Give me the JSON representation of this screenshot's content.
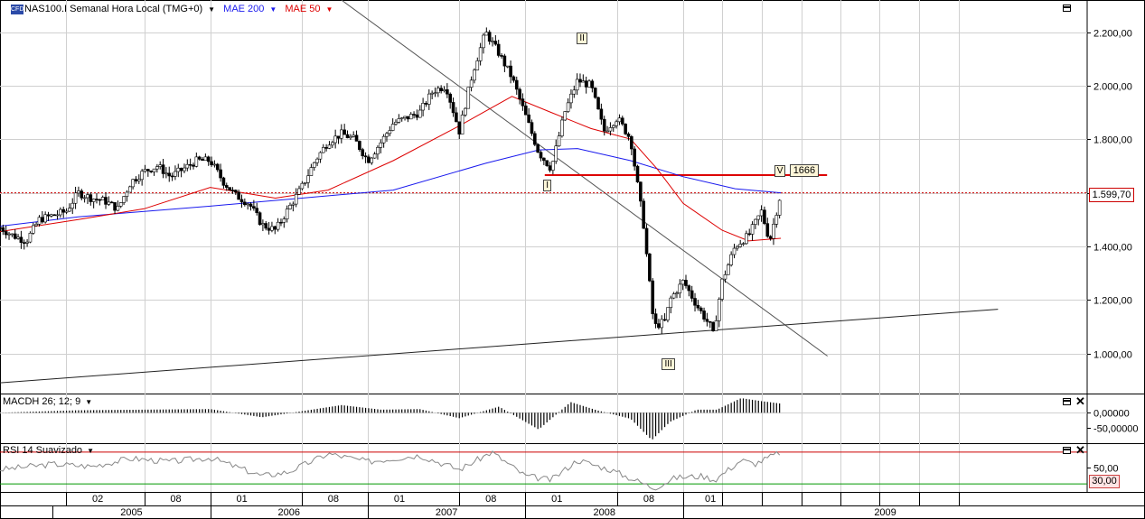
{
  "header": {
    "symbol_title": "NAS100.I Semanal Hora Local (TMG+0)",
    "mae200_label": "MAE 200",
    "mae50_label": "MAE 50",
    "cfd_icon": "CFD",
    "colors": {
      "mae200": "#1a1aee",
      "mae50": "#dd0000",
      "price_line": "#cc0000",
      "trendline": "#555555"
    }
  },
  "macd_label": "MACDH 26; 12; 9",
  "rsi_label": "RSI 14 Suavizado",
  "current_price_label": "1.599,70",
  "rsi_level_label": "30,00",
  "annotations": {
    "wave_I": "I",
    "wave_II": "II",
    "wave_III": "III",
    "wave_V": "V",
    "resistance_value": "1666"
  },
  "chart_data": {
    "type": "candlestick",
    "title": "",
    "timeframe": "weekly",
    "main_axis": {
      "ylim": [
        850,
        2320
      ],
      "ticks": [
        1000,
        1200,
        1400,
        1600,
        1800,
        2000,
        2200
      ],
      "tick_labels": [
        "1.000,00",
        "1.200,00",
        "1.400,00",
        "1.600,00",
        "1.800,00",
        "2.000,00",
        "2.200,00"
      ]
    },
    "macd_axis": {
      "ylim": [
        -100,
        60
      ],
      "ticks": [
        0,
        -50
      ],
      "tick_labels": [
        "0,00000",
        "-50,00000"
      ]
    },
    "rsi_axis": {
      "ylim": [
        20,
        80
      ],
      "ticks": [
        50
      ],
      "tick_labels": [
        "50,00"
      ],
      "overbought": 70,
      "oversold": 30
    },
    "x_axis": {
      "start": "2004-09-01",
      "end": "2009-12-31",
      "month_ticks": [
        {
          "date": "2005-02-01",
          "label": "02"
        },
        {
          "date": "2005-08-01",
          "label": "08"
        },
        {
          "date": "2006-01-01",
          "label": "01"
        },
        {
          "date": "2006-08-01",
          "label": "08"
        },
        {
          "date": "2007-01-01",
          "label": "01"
        },
        {
          "date": "2007-08-01",
          "label": "08"
        },
        {
          "date": "2008-01-01",
          "label": "01"
        },
        {
          "date": "2008-08-01",
          "label": "08"
        },
        {
          "date": "2009-01-01",
          "label": "01"
        }
      ],
      "years": [
        {
          "date": "2005-01-01",
          "label": "2005"
        },
        {
          "date": "2006-01-01",
          "label": "2006"
        },
        {
          "date": "2007-01-01",
          "label": "2007"
        },
        {
          "date": "2008-01-01",
          "label": "2008"
        },
        {
          "date": "2009-01-01",
          "label": "2009"
        }
      ],
      "grid_dates": [
        "2009-04-01",
        "2009-07-01",
        "2009-10-01",
        "2010-01-01",
        "2010-04-01",
        "2010-07-01",
        "2010-10-01"
      ]
    },
    "close_path": [
      [
        "2004-09-01",
        1470
      ],
      [
        "2004-10-01",
        1440
      ],
      [
        "2004-11-01",
        1420
      ],
      [
        "2004-12-01",
        1500
      ],
      [
        "2005-02-01",
        1530
      ],
      [
        "2005-03-01",
        1600
      ],
      [
        "2005-04-01",
        1580
      ],
      [
        "2005-05-01",
        1570
      ],
      [
        "2005-06-01",
        1540
      ],
      [
        "2005-07-01",
        1640
      ],
      [
        "2005-08-01",
        1680
      ],
      [
        "2005-09-01",
        1700
      ],
      [
        "2005-10-01",
        1660
      ],
      [
        "2005-11-01",
        1690
      ],
      [
        "2005-12-01",
        1720
      ],
      [
        "2006-01-01",
        1720
      ],
      [
        "2006-02-01",
        1640
      ],
      [
        "2006-03-01",
        1590
      ],
      [
        "2006-04-01",
        1560
      ],
      [
        "2006-05-01",
        1480
      ],
      [
        "2006-06-01",
        1460
      ],
      [
        "2006-07-01",
        1540
      ],
      [
        "2006-08-01",
        1620
      ],
      [
        "2006-09-01",
        1720
      ],
      [
        "2006-10-01",
        1790
      ],
      [
        "2006-11-01",
        1820
      ],
      [
        "2006-12-01",
        1800
      ],
      [
        "2007-01-01",
        1720
      ],
      [
        "2007-02-01",
        1790
      ],
      [
        "2007-03-01",
        1860
      ],
      [
        "2007-04-01",
        1880
      ],
      [
        "2007-05-01",
        1900
      ],
      [
        "2007-06-01",
        1980
      ],
      [
        "2007-07-01",
        2000
      ],
      [
        "2007-08-01",
        1830
      ],
      [
        "2007-09-01",
        2050
      ],
      [
        "2007-10-01",
        2200
      ],
      [
        "2007-11-01",
        2120
      ],
      [
        "2007-12-01",
        2030
      ],
      [
        "2008-01-01",
        1890
      ],
      [
        "2008-02-01",
        1750
      ],
      [
        "2008-03-01",
        1690
      ],
      [
        "2008-04-01",
        1900
      ],
      [
        "2008-05-01",
        2020
      ],
      [
        "2008-06-01",
        2000
      ],
      [
        "2008-07-01",
        1830
      ],
      [
        "2008-08-01",
        1880
      ],
      [
        "2008-09-01",
        1800
      ],
      [
        "2008-09-15",
        1650
      ],
      [
        "2008-10-01",
        1480
      ],
      [
        "2008-10-25",
        1100
      ],
      [
        "2008-11-20",
        1120
      ],
      [
        "2008-12-01",
        1200
      ],
      [
        "2009-01-01",
        1270
      ],
      [
        "2009-02-01",
        1180
      ],
      [
        "2009-03-05",
        1100
      ],
      [
        "2009-03-10",
        1060
      ],
      [
        "2009-04-01",
        1270
      ],
      [
        "2009-05-01",
        1400
      ],
      [
        "2009-06-01",
        1440
      ],
      [
        "2009-07-01",
        1530
      ],
      [
        "2009-07-20",
        1420
      ],
      [
        "2009-08-15",
        1600
      ]
    ],
    "mae200_path": [
      [
        "2004-09-01",
        1475
      ],
      [
        "2005-03-01",
        1510
      ],
      [
        "2006-01-01",
        1550
      ],
      [
        "2006-08-01",
        1580
      ],
      [
        "2007-03-01",
        1610
      ],
      [
        "2007-10-01",
        1710
      ],
      [
        "2008-02-01",
        1760
      ],
      [
        "2008-05-01",
        1765
      ],
      [
        "2008-09-01",
        1720
      ],
      [
        "2009-01-01",
        1660
      ],
      [
        "2009-05-01",
        1615
      ],
      [
        "2009-08-15",
        1600
      ]
    ],
    "mae50_path": [
      [
        "2004-09-01",
        1455
      ],
      [
        "2005-03-01",
        1500
      ],
      [
        "2005-08-01",
        1540
      ],
      [
        "2006-01-01",
        1620
      ],
      [
        "2006-06-01",
        1580
      ],
      [
        "2006-10-01",
        1610
      ],
      [
        "2007-03-01",
        1720
      ],
      [
        "2007-08-01",
        1850
      ],
      [
        "2007-12-01",
        1960
      ],
      [
        "2008-03-01",
        1900
      ],
      [
        "2008-06-01",
        1840
      ],
      [
        "2008-09-01",
        1800
      ],
      [
        "2008-11-01",
        1690
      ],
      [
        "2009-01-01",
        1560
      ],
      [
        "2009-04-01",
        1460
      ],
      [
        "2009-06-01",
        1420
      ],
      [
        "2009-08-15",
        1430
      ]
    ],
    "lines": {
      "resistance": {
        "value": 1666,
        "from": "2008-02-15",
        "to": "2009-11-30"
      },
      "current_price": 1599.7,
      "descending_trendline": {
        "from": [
          "2006-11-01",
          2320
        ],
        "to": [
          "2009-12-01",
          990
        ]
      },
      "ascending_trendline": {
        "from": [
          "2004-09-01",
          890
        ],
        "to": [
          "2010-12-31",
          1165
        ]
      }
    },
    "wave_points": {
      "I": [
        "2008-02-20",
        1650
      ],
      "II": [
        "2008-05-10",
        2170
      ],
      "III": [
        "2008-11-25",
        980
      ],
      "V": [
        "2009-08-10",
        1690
      ]
    },
    "macd_path": [
      [
        "2004-09-01",
        0
      ],
      [
        "2005-03-01",
        8
      ],
      [
        "2005-08-01",
        10
      ],
      [
        "2006-01-01",
        12
      ],
      [
        "2006-05-01",
        -15
      ],
      [
        "2006-08-01",
        5
      ],
      [
        "2006-11-01",
        25
      ],
      [
        "2007-02-01",
        10
      ],
      [
        "2007-05-01",
        12
      ],
      [
        "2007-08-01",
        -18
      ],
      [
        "2007-11-01",
        20
      ],
      [
        "2008-02-01",
        -55
      ],
      [
        "2008-04-15",
        35
      ],
      [
        "2008-06-15",
        8
      ],
      [
        "2008-09-01",
        -20
      ],
      [
        "2008-10-20",
        -90
      ],
      [
        "2008-12-01",
        -30
      ],
      [
        "2009-02-01",
        10
      ],
      [
        "2009-03-20",
        10
      ],
      [
        "2009-05-15",
        48
      ],
      [
        "2009-07-01",
        38
      ],
      [
        "2009-08-15",
        30
      ]
    ],
    "rsi_path": [
      [
        "2004-09-01",
        48
      ],
      [
        "2005-01-01",
        55
      ],
      [
        "2005-04-01",
        52
      ],
      [
        "2005-07-01",
        62
      ],
      [
        "2005-10-01",
        58
      ],
      [
        "2006-01-01",
        63
      ],
      [
        "2006-05-01",
        40
      ],
      [
        "2006-07-01",
        45
      ],
      [
        "2006-10-01",
        68
      ],
      [
        "2007-01-01",
        58
      ],
      [
        "2007-05-01",
        66
      ],
      [
        "2007-08-01",
        48
      ],
      [
        "2007-10-15",
        70
      ],
      [
        "2008-01-01",
        40
      ],
      [
        "2008-03-01",
        35
      ],
      [
        "2008-05-01",
        60
      ],
      [
        "2008-07-15",
        48
      ],
      [
        "2008-10-25",
        25
      ],
      [
        "2008-12-15",
        38
      ],
      [
        "2009-02-15",
        40
      ],
      [
        "2009-03-15",
        35
      ],
      [
        "2009-05-15",
        60
      ],
      [
        "2009-06-15",
        55
      ],
      [
        "2009-08-15",
        70
      ]
    ]
  }
}
